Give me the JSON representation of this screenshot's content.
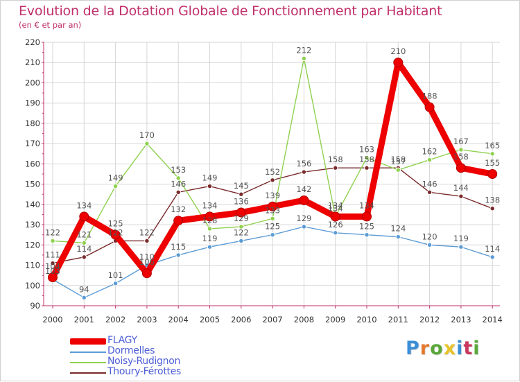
{
  "title": "Evolution de la Dotation Globale de Fonctionnement par Habitant",
  "subtitle": "(en € et par an)",
  "logo": {
    "text": "Proxiti",
    "colors": [
      "#3a8fd6",
      "#e57a2c",
      "#5aa83a",
      "#e8c32a",
      "#3a8fd6",
      "#c9385c",
      "#5aa83a"
    ]
  },
  "colors": {
    "FLAGY": "#ee0000",
    "Dormelles": "#5b9bd5",
    "Noisy-Rudignon": "#8fd14f",
    "Thoury-Férottes": "#7a2a2a",
    "axis": "#c0306a",
    "grid": "#d6d6d6",
    "value_label": "#555555"
  },
  "chart_data": {
    "type": "line",
    "title": "Evolution de la Dotation Globale de Fonctionnement par Habitant",
    "subtitle": "(en € et par an)",
    "xlabel": "",
    "ylabel": "",
    "ylim": [
      90,
      220
    ],
    "yticks": [
      90,
      100,
      110,
      120,
      130,
      140,
      150,
      160,
      170,
      180,
      190,
      200,
      210,
      220
    ],
    "grid": true,
    "legend_position": "bottom-left",
    "x": [
      "2000",
      "2001",
      "2002",
      "2003",
      "2004",
      "2005",
      "2006",
      "2007",
      "2008",
      "2009",
      "2010",
      "2011",
      "2012",
      "2013",
      "2014"
    ],
    "series": [
      {
        "name": "Thoury-Férottes",
        "values": [
          111,
          114,
          122,
          122,
          146,
          149,
          145,
          152,
          156,
          158,
          158,
          158,
          146,
          144,
          138
        ]
      },
      {
        "name": "Noisy-Rudignon",
        "values": [
          122,
          121,
          149,
          170,
          153,
          128,
          129,
          133,
          212,
          134,
          163,
          157,
          162,
          167,
          165
        ]
      },
      {
        "name": "Dormelles",
        "values": [
          103,
          94,
          101,
          110,
          115,
          119,
          122,
          125,
          129,
          126,
          125,
          124,
          120,
          119,
          114
        ]
      },
      {
        "name": "FLAGY",
        "values": [
          104,
          134,
          125,
          106,
          132,
          134,
          136,
          139,
          142,
          134,
          134,
          210,
          188,
          158,
          155
        ]
      }
    ]
  },
  "legend": [
    {
      "name": "FLAGY"
    },
    {
      "name": "Dormelles"
    },
    {
      "name": "Noisy-Rudignon"
    },
    {
      "name": "Thoury-Férottes"
    }
  ]
}
